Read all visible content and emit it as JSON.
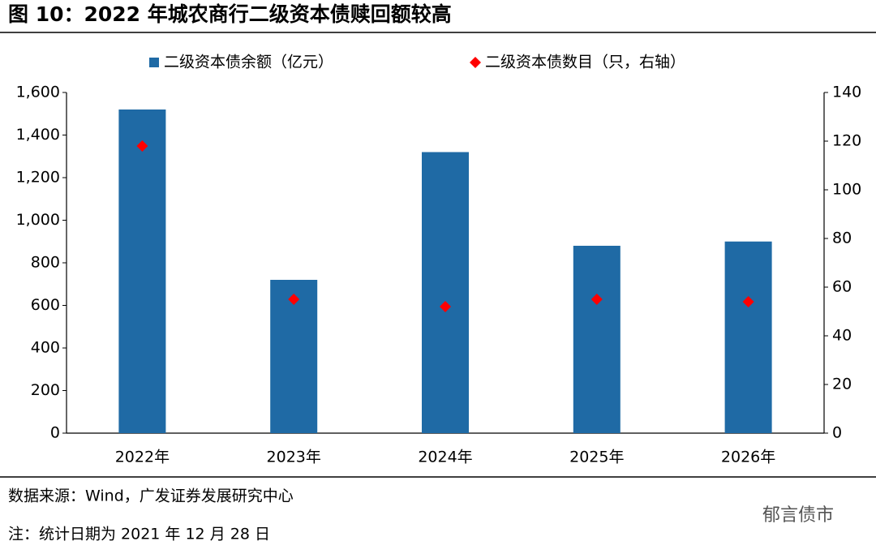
{
  "title": "图 10：2022 年城农商行二级资本债赎回额较高",
  "chart_data": {
    "type": "bar",
    "categories": [
      "2022年",
      "2023年",
      "2024年",
      "2025年",
      "2026年"
    ],
    "series": [
      {
        "name": "二级资本债余额（亿元）",
        "type": "bar",
        "color": "#1f6aa5",
        "values": [
          1520,
          720,
          1320,
          880,
          900
        ]
      },
      {
        "name": "二级资本债数目（只，右轴）",
        "type": "scatter",
        "axis": "y2",
        "color": "#ff0000",
        "values": [
          118,
          55,
          52,
          55,
          54
        ]
      }
    ],
    "ylim": [
      0,
      1600
    ],
    "yticks": [
      0,
      200,
      400,
      600,
      800,
      {
        "value": 1000,
        "label": "1,000"
      },
      {
        "value": 1200,
        "label": "1,200"
      },
      {
        "value": 1400,
        "label": "1,400"
      },
      {
        "value": 1600,
        "label": "1,600"
      }
    ],
    "y2lim": [
      0,
      140
    ],
    "y2ticks": [
      0,
      20,
      40,
      60,
      80,
      100,
      120,
      140
    ],
    "grid": false,
    "legend": "top"
  },
  "source": "数据来源：Wind，广发证券发展研究中心",
  "note": "注：统计日期为 2021 年 12 月 28 日",
  "watermark": "郁言债市"
}
